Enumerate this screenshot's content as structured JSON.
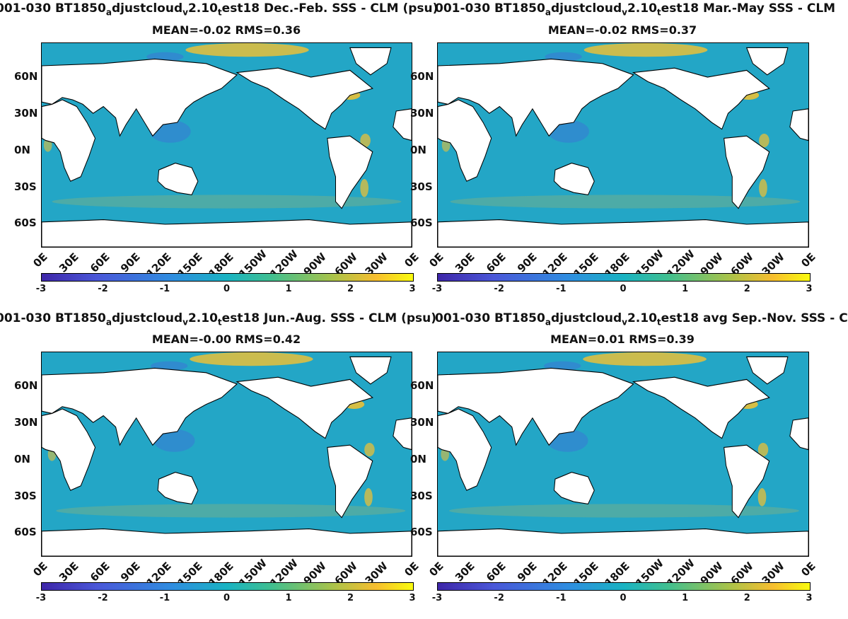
{
  "panels": [
    {
      "title_parts": [
        "001-030 BT1850",
        "a",
        "djustcloud",
        "v",
        "2.10",
        "t",
        "est18  Dec.-Feb. SSS - CLM (psu)"
      ],
      "stats": "MEAN=-0.02   RMS=0.36"
    },
    {
      "title_parts": [
        "001-030 BT1850",
        "a",
        "djustcloud",
        "v",
        "2.10",
        "t",
        "est18 Mar.-May SSS - CLM"
      ],
      "stats": "MEAN=-0.02   RMS=0.37"
    },
    {
      "title_parts": [
        "001-030 BT1850",
        "a",
        "djustcloud",
        "v",
        "2.10",
        "t",
        "est18 Jun.-Aug. SSS - CLM (psu)"
      ],
      "stats": "MEAN=-0.00   RMS=0.42"
    },
    {
      "title_parts": [
        "001-030 BT1850",
        "a",
        "djustcloud",
        "v",
        "2.10",
        "t",
        "est18 avg Sep.-Nov. SSS - C"
      ],
      "stats": "MEAN=0.01   RMS=0.39"
    }
  ],
  "lat_ticks": [
    "60N",
    "30N",
    "0N",
    "30S",
    "60S"
  ],
  "lon_ticks": [
    "0E",
    "30E",
    "60E",
    "90E",
    "120E",
    "150E",
    "180E",
    "150W",
    "120W",
    "90W",
    "60W",
    "30W",
    "0E"
  ],
  "colorbar_ticks": [
    "-3",
    "-2",
    "-1",
    "0",
    "1",
    "2",
    "3"
  ],
  "colors": {
    "ocean": "#23a6c6",
    "ocean_low": "#3e6fd8",
    "ocean_high": "#f5c22f",
    "land": "#ffffff"
  }
}
